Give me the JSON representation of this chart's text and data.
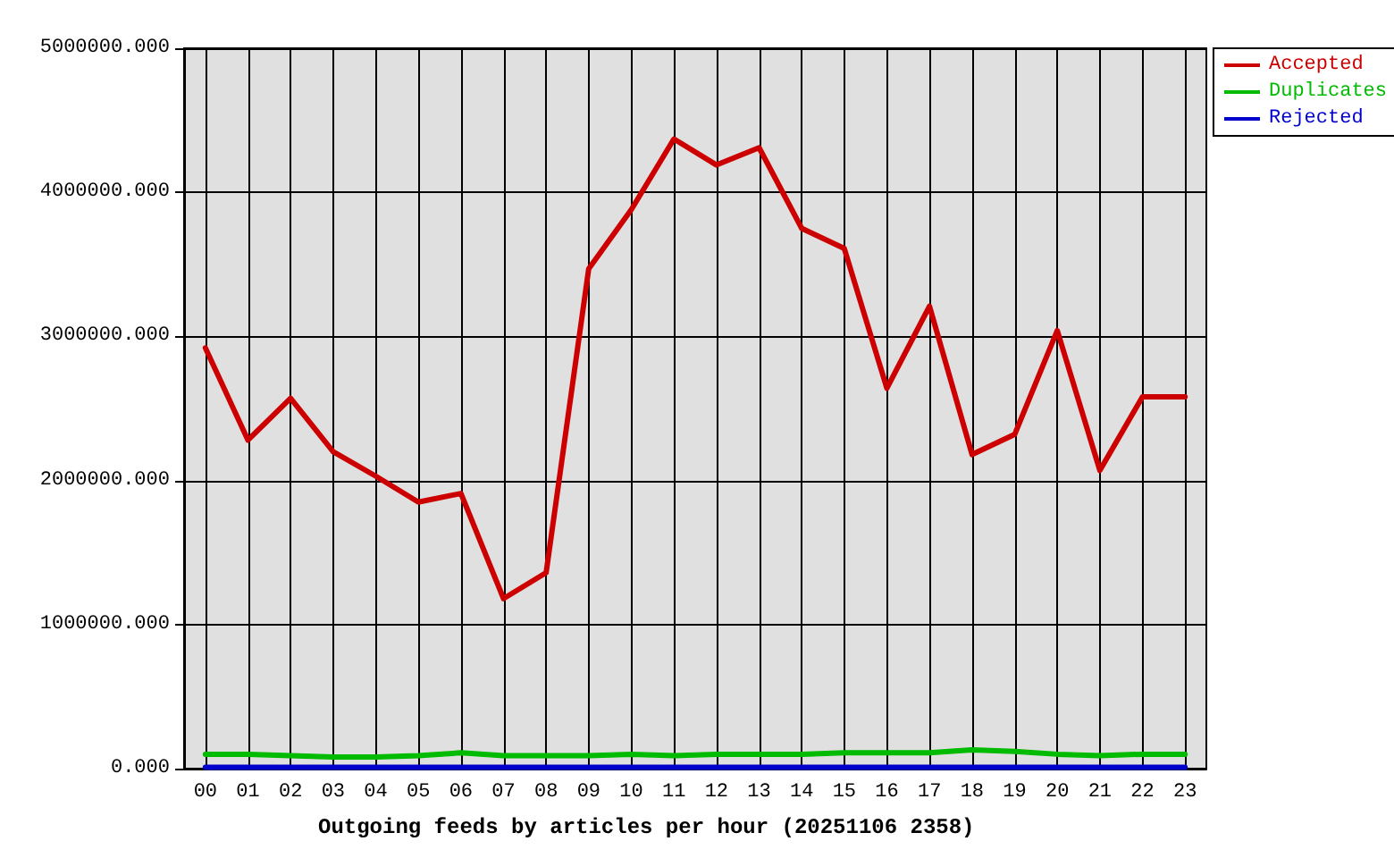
{
  "chart_data": {
    "type": "line",
    "title": "Outgoing feeds by articles per hour (20251106 2358)",
    "categories": [
      "00",
      "01",
      "02",
      "03",
      "04",
      "05",
      "06",
      "07",
      "08",
      "09",
      "10",
      "11",
      "12",
      "13",
      "14",
      "15",
      "16",
      "17",
      "18",
      "19",
      "20",
      "21",
      "22",
      "23"
    ],
    "series": [
      {
        "name": "Accepted",
        "color": "#cc0000",
        "values": [
          2920000,
          2280000,
          2570000,
          2200000,
          2030000,
          1850000,
          1910000,
          1180000,
          1360000,
          3470000,
          3880000,
          4370000,
          4190000,
          4310000,
          3750000,
          3610000,
          2640000,
          3210000,
          2180000,
          2320000,
          3040000,
          2070000,
          2580000,
          2580000
        ]
      },
      {
        "name": "Duplicates",
        "color": "#00bb00",
        "values": [
          100000,
          100000,
          90000,
          80000,
          80000,
          90000,
          110000,
          90000,
          90000,
          90000,
          100000,
          90000,
          100000,
          100000,
          100000,
          110000,
          110000,
          110000,
          130000,
          120000,
          100000,
          90000,
          100000,
          100000
        ]
      },
      {
        "name": "Rejected",
        "color": "#0000cc",
        "values": [
          10000,
          10000,
          10000,
          10000,
          10000,
          10000,
          10000,
          10000,
          10000,
          10000,
          10000,
          10000,
          10000,
          10000,
          10000,
          10000,
          10000,
          10000,
          10000,
          10000,
          10000,
          10000,
          10000,
          10000
        ]
      }
    ],
    "ylim": [
      0,
      5000000
    ],
    "yticks": [
      {
        "value": 0,
        "label": "0.000"
      },
      {
        "value": 1000000,
        "label": "1000000.000"
      },
      {
        "value": 2000000,
        "label": "2000000.000"
      },
      {
        "value": 3000000,
        "label": "3000000.000"
      },
      {
        "value": 4000000,
        "label": "4000000.000"
      },
      {
        "value": 5000000,
        "label": "5000000.000"
      }
    ],
    "grid": true,
    "legend": "top right",
    "marker": "none",
    "line_style": "solid"
  }
}
